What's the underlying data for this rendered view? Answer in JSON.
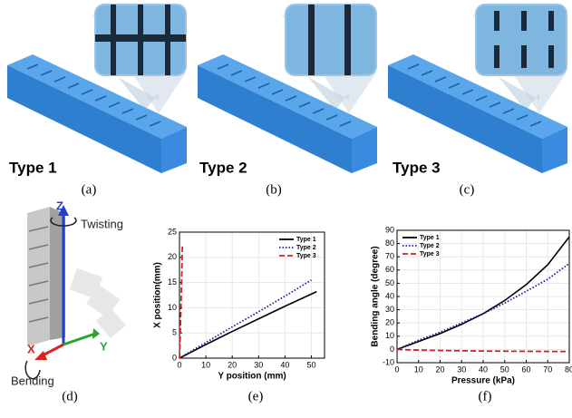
{
  "panels": {
    "type_labels": [
      "Type 1",
      "Type 2",
      "Type 3"
    ],
    "letters": [
      "(a)",
      "(b)",
      "(c)",
      "(d)",
      "(e)",
      "(f)"
    ]
  },
  "diagram": {
    "labels": {
      "z": "Z",
      "twisting": "Twisting",
      "x": "X",
      "y": "Y",
      "bending": "Bending"
    }
  },
  "chart_data": [
    {
      "type": "line",
      "xlabel": "Y position (mm)",
      "ylabel": "X position(mm)",
      "xlim": [
        0,
        55
      ],
      "ylim": [
        0,
        25
      ],
      "xticks": [
        0,
        10,
        20,
        30,
        40,
        50
      ],
      "yticks": [
        0,
        5,
        10,
        15,
        20,
        25
      ],
      "grid": true,
      "legend": "upper right",
      "series": [
        {
          "name": "Type 1",
          "color": "#000000",
          "linestyle": "solid",
          "x": [
            0,
            10,
            20,
            30,
            40,
            52
          ],
          "values": [
            0,
            2.7,
            5.3,
            7.8,
            10.3,
            13.2
          ]
        },
        {
          "name": "Type 2",
          "color": "#1a1aa6",
          "linestyle": "dotted",
          "x": [
            0,
            10,
            20,
            30,
            40,
            50
          ],
          "values": [
            0,
            3.1,
            6.2,
            9.2,
            12.3,
            15.5
          ]
        },
        {
          "name": "Type 3",
          "color": "#d62020",
          "linestyle": "dashed",
          "x": [
            0,
            0.3,
            0.6,
            0.9,
            1.1
          ],
          "values": [
            0,
            5,
            11,
            17,
            22.5
          ]
        }
      ]
    },
    {
      "type": "line",
      "xlabel": "Pressure (kPa)",
      "ylabel": "Bending angle (degree)",
      "xlim": [
        0,
        80
      ],
      "ylim": [
        -10,
        90
      ],
      "xticks": [
        0,
        10,
        20,
        30,
        40,
        50,
        60,
        70,
        80
      ],
      "yticks": [
        -10,
        0,
        10,
        20,
        30,
        40,
        50,
        60,
        70,
        80,
        90
      ],
      "grid": true,
      "legend": "upper left",
      "series": [
        {
          "name": "Type 1",
          "color": "#000000",
          "linestyle": "solid",
          "x": [
            0,
            10,
            20,
            30,
            40,
            50,
            60,
            70,
            80
          ],
          "values": [
            0,
            6,
            12,
            19,
            27,
            37,
            49,
            64,
            85
          ]
        },
        {
          "name": "Type 2",
          "color": "#1a1aa6",
          "linestyle": "dotted",
          "x": [
            0,
            10,
            20,
            30,
            40,
            50,
            60,
            70,
            80
          ],
          "values": [
            0,
            7,
            13,
            20,
            27,
            35,
            44,
            53,
            65
          ]
        },
        {
          "name": "Type 3",
          "color": "#d62020",
          "linestyle": "dashed",
          "x": [
            0,
            10,
            20,
            30,
            40,
            50,
            60,
            70,
            80
          ],
          "values": [
            0,
            -0.5,
            -0.8,
            -1,
            -1.2,
            -1.3,
            -1.4,
            -1.5,
            -1.5
          ]
        }
      ]
    }
  ]
}
